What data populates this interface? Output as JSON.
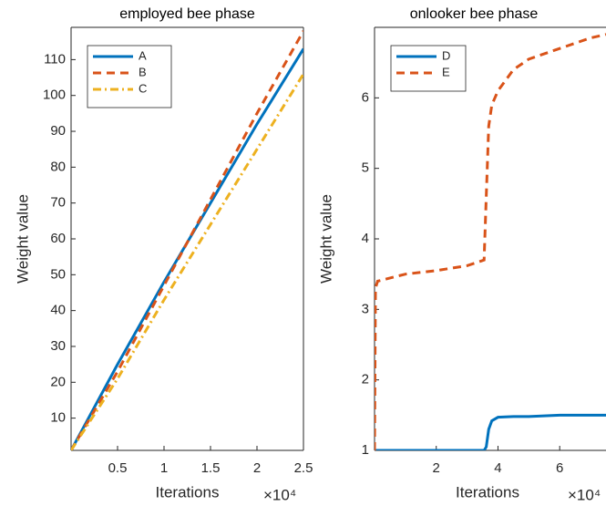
{
  "chart_data": [
    {
      "type": "line",
      "title": "employed bee phase",
      "xlabel": "Iterations",
      "ylabel": "Weight value",
      "exponent_label": "×10⁴",
      "x": [
        0,
        5000,
        10000,
        15000,
        20000,
        25000
      ],
      "series": [
        {
          "name": "A",
          "color": "#0072bd",
          "style": "solid",
          "values": [
            1,
            25,
            48,
            70,
            92,
            113
          ]
        },
        {
          "name": "B",
          "color": "#d95319",
          "style": "dashed",
          "values": [
            1,
            23,
            47,
            71,
            95,
            118
          ]
        },
        {
          "name": "C",
          "color": "#edb120",
          "style": "dashdot",
          "values": [
            1,
            21,
            43,
            64,
            85,
            106
          ]
        }
      ],
      "xlim": [
        0,
        25000
      ],
      "xticks": [
        {
          "value": 5000,
          "label": "0.5"
        },
        {
          "value": 10000,
          "label": "1"
        },
        {
          "value": 15000,
          "label": "1.5"
        },
        {
          "value": 20000,
          "label": "2"
        },
        {
          "value": 25000,
          "label": "2.5"
        }
      ],
      "ylim": [
        1,
        119
      ],
      "yticks": [
        10,
        20,
        30,
        40,
        50,
        60,
        70,
        80,
        90,
        100,
        110
      ],
      "legend": "upper left"
    },
    {
      "type": "line",
      "title": "onlooker bee phase",
      "xlabel": "Iterations",
      "ylabel": "Weight value",
      "exponent_label": "×10⁴",
      "x": [
        0,
        300,
        1000,
        10000,
        20000,
        30000,
        35500,
        36200,
        37000,
        38000,
        40000,
        45000,
        50000,
        60000,
        70000,
        75000
      ],
      "series": [
        {
          "name": "D",
          "color": "#0072bd",
          "style": "solid",
          "values": [
            1,
            1,
            1,
            1,
            1,
            1,
            1,
            1.05,
            1.3,
            1.42,
            1.47,
            1.48,
            1.48,
            1.5,
            1.5,
            1.5
          ]
        },
        {
          "name": "E",
          "color": "#d95319",
          "style": "dashed",
          "values": [
            1,
            3.3,
            3.4,
            3.5,
            3.55,
            3.62,
            3.7,
            4.6,
            5.6,
            5.9,
            6.1,
            6.4,
            6.55,
            6.7,
            6.85,
            6.9
          ]
        }
      ],
      "xlim": [
        0,
        75000
      ],
      "xticks": [
        {
          "value": 20000,
          "label": "2"
        },
        {
          "value": 40000,
          "label": "4"
        },
        {
          "value": 60000,
          "label": "6"
        }
      ],
      "ylim": [
        1,
        7
      ],
      "yticks": [
        1,
        2,
        3,
        4,
        5,
        6
      ],
      "legend": "upper left"
    }
  ]
}
